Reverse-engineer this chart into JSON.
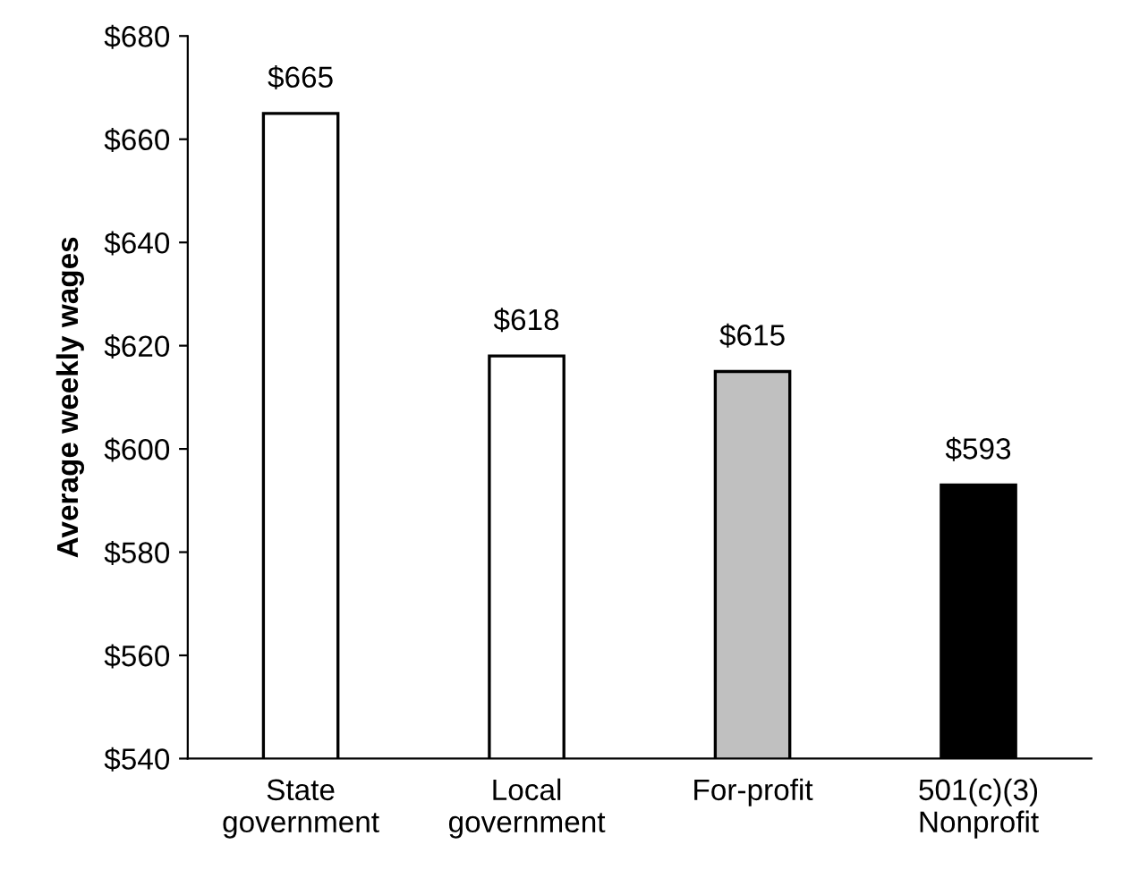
{
  "chart_data": {
    "type": "bar",
    "ylabel": "Average weekly wages",
    "categories": [
      "State\ngovernment",
      "Local\ngovernment",
      "For-profit",
      "501(c)(3)\nNonprofit"
    ],
    "values": [
      665,
      618,
      615,
      593
    ],
    "colors": [
      "#ffffff",
      "#ffffff",
      "#c0c0c0",
      "#000000"
    ],
    "value_labels": [
      "$665",
      "$618",
      "$615",
      "$593"
    ],
    "ylim": [
      540,
      680
    ],
    "yticks": [
      {
        "value": 540,
        "label": "$540"
      },
      {
        "value": 560,
        "label": "$560"
      },
      {
        "value": 580,
        "label": "$580"
      },
      {
        "value": 600,
        "label": "$600"
      },
      {
        "value": 620,
        "label": "$620"
      },
      {
        "value": 640,
        "label": "$640"
      },
      {
        "value": 660,
        "label": "$660"
      },
      {
        "value": 680,
        "label": "$680"
      }
    ],
    "grid": false
  }
}
